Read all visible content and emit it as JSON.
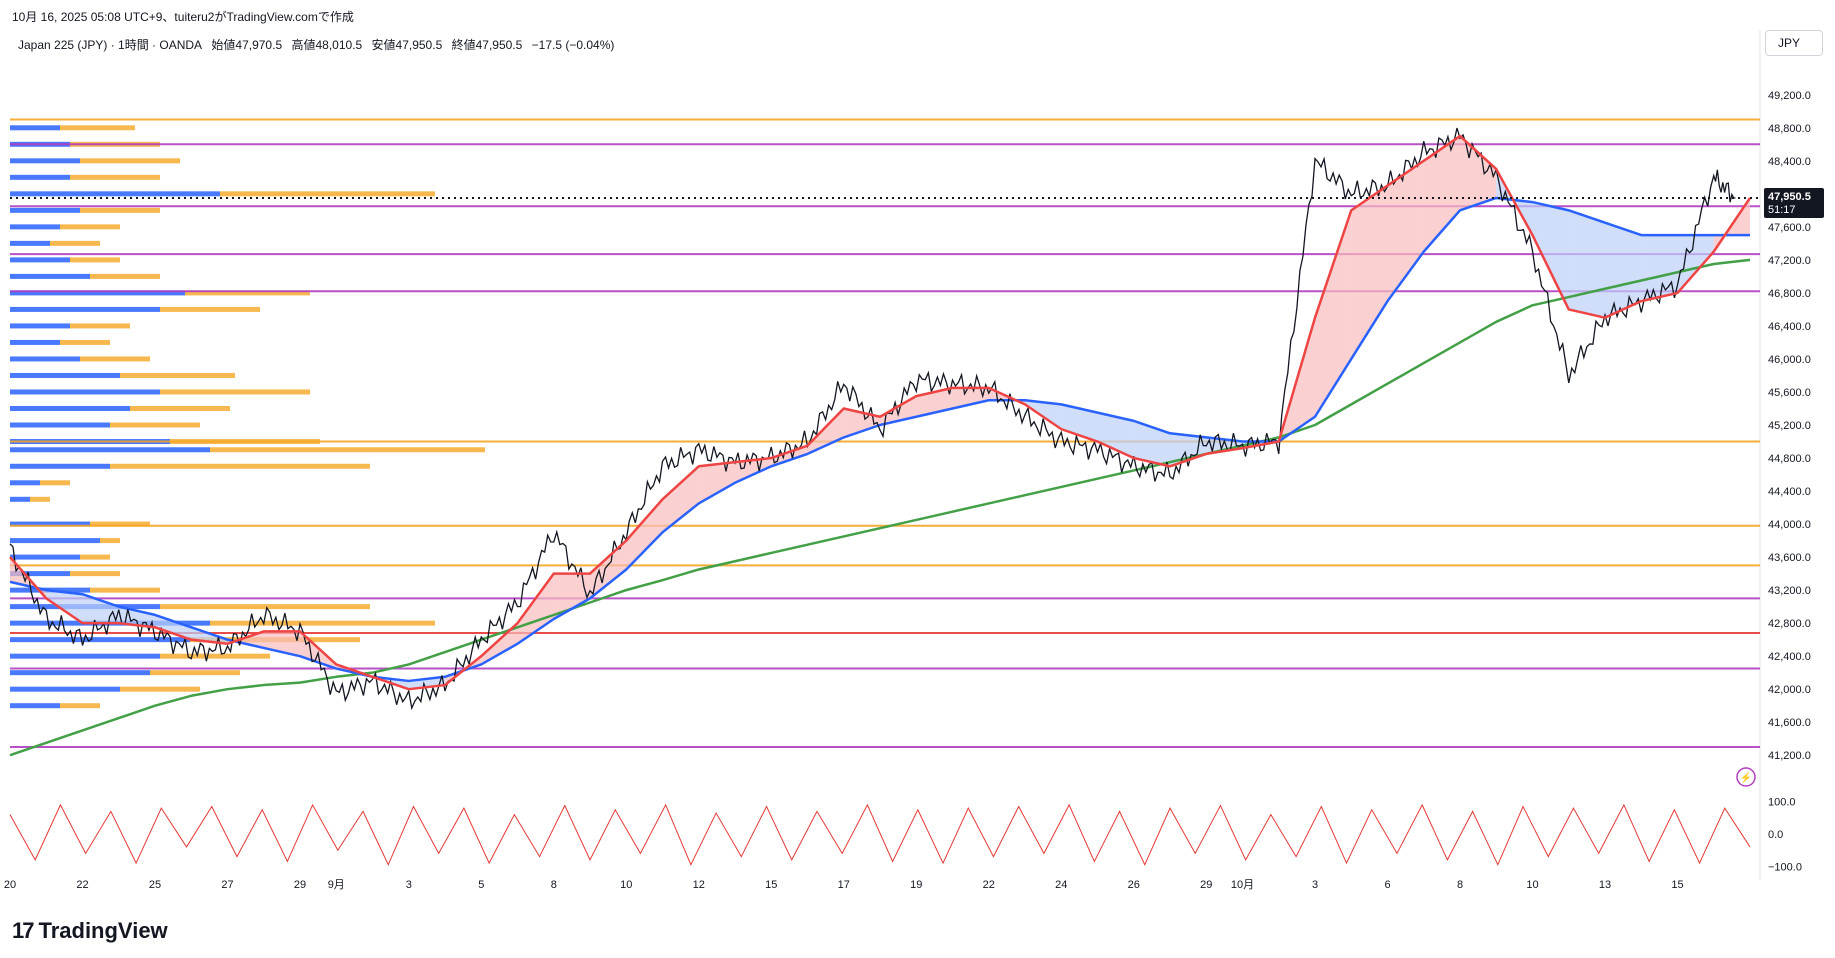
{
  "caption": "10月 16, 2025 05:08 UTC+9、tuiteru2がTradingView.comで作成",
  "legend": {
    "symbol": "Japan 225 (JPY) · 1時間 · OANDA",
    "open": "始値47,970.5",
    "high": "高値48,010.5",
    "low": "安値47,950.5",
    "close": "終値47,950.5",
    "change": "−17.5 (−0.04%)"
  },
  "currency_button": "JPY",
  "price_badge": {
    "price": "47,950.5",
    "countdown": "51:17"
  },
  "brand": {
    "mark": "17",
    "name": "TradingView"
  },
  "colors": {
    "up_line": "#131722",
    "ema_fast": "#ef4444",
    "ema_mid": "#2962ff",
    "ema_slow": "#43a047",
    "fill_bull": "#f8bcbc",
    "fill_bear": "#bcd0f8",
    "vp_up": "#2962ff",
    "vp_down": "#f5a623",
    "lvl_orange": "#f5a623",
    "lvl_purple": "#b13fc0",
    "lvl_red": "#e53935",
    "osc": "#e53935"
  },
  "chart_data": {
    "type": "line",
    "title": "",
    "ylim": [
      40900,
      49500
    ],
    "y_ticks": [
      "49,200.0",
      "48,800.0",
      "48,400.0",
      "48,000.0",
      "47,600.0",
      "47,200.0",
      "46,800.0",
      "46,400.0",
      "46,000.0",
      "45,600.0",
      "45,200.0",
      "44,800.0",
      "44,400.0",
      "44,000.0",
      "43,600.0",
      "43,200.0",
      "42,800.0",
      "42,400.0",
      "42,000.0",
      "41,600.0",
      "41,200.0"
    ],
    "y_tick_values": [
      49200,
      48800,
      48400,
      48000,
      47600,
      47200,
      46800,
      46400,
      46000,
      45600,
      45200,
      44800,
      44400,
      44000,
      43600,
      43200,
      42800,
      42400,
      42000,
      41600,
      41200
    ],
    "x_labels": [
      "20",
      "22",
      "25",
      "27",
      "29",
      "9月",
      "3",
      "5",
      "8",
      "10",
      "12",
      "15",
      "17",
      "19",
      "22",
      "24",
      "26",
      "29",
      "10月",
      "3",
      "6",
      "8",
      "10",
      "13",
      "15"
    ],
    "x_label_idx": [
      0,
      2,
      4,
      6,
      8,
      9,
      11,
      13,
      15,
      17,
      19,
      21,
      23,
      25,
      27,
      29,
      31,
      33,
      34,
      36,
      38,
      40,
      42,
      44,
      46
    ],
    "session_count": 48,
    "price_series": {
      "name": "",
      "x": [
        0,
        1,
        2,
        3,
        4,
        5,
        6,
        7,
        8,
        9,
        10,
        11,
        12,
        13,
        14,
        15,
        16,
        17,
        18,
        19,
        20,
        21,
        22,
        23,
        24,
        25,
        26,
        27,
        28,
        29,
        30,
        31,
        32,
        33,
        34,
        35,
        36,
        37,
        38,
        39,
        40,
        41,
        42,
        43,
        44,
        45,
        46,
        47,
        47.6
      ],
      "y": [
        43700,
        42850,
        42600,
        42900,
        42700,
        42450,
        42500,
        42900,
        42700,
        41950,
        42100,
        41850,
        42050,
        42600,
        43050,
        43900,
        43150,
        43900,
        44700,
        44900,
        44750,
        44800,
        45000,
        45700,
        45150,
        45750,
        45700,
        45650,
        45300,
        45000,
        44900,
        44700,
        44600,
        45000,
        44950,
        45000,
        48400,
        48000,
        48100,
        48500,
        48700,
        48200,
        47300,
        45800,
        46500,
        46700,
        46900,
        48200,
        47950
      ]
    },
    "ema_fast": [
      43600,
      43100,
      42800,
      42800,
      42750,
      42600,
      42550,
      42700,
      42700,
      42300,
      42150,
      42000,
      42050,
      42400,
      42800,
      43400,
      43400,
      43800,
      44300,
      44700,
      44750,
      44800,
      44950,
      45400,
      45300,
      45550,
      45650,
      45650,
      45450,
      45150,
      45000,
      44800,
      44700,
      44850,
      44920,
      45000,
      46500,
      47800,
      48100,
      48400,
      48700,
      48300,
      47500,
      46600,
      46500,
      46700,
      46800,
      47300,
      47950
    ],
    "ema_mid": [
      43300,
      43200,
      43150,
      43000,
      42900,
      42750,
      42600,
      42500,
      42400,
      42250,
      42150,
      42100,
      42150,
      42300,
      42550,
      42850,
      43100,
      43450,
      43900,
      44250,
      44500,
      44700,
      44850,
      45050,
      45200,
      45300,
      45400,
      45500,
      45500,
      45450,
      45350,
      45250,
      45100,
      45050,
      45000,
      45000,
      45300,
      46000,
      46700,
      47300,
      47800,
      47950,
      47900,
      47800,
      47650,
      47500,
      47500,
      47500,
      47500
    ],
    "ema_slow": [
      41200,
      41350,
      41500,
      41650,
      41800,
      41920,
      42000,
      42050,
      42080,
      42150,
      42200,
      42300,
      42450,
      42600,
      42750,
      42900,
      43050,
      43200,
      43320,
      43450,
      43550,
      43650,
      43750,
      43850,
      43950,
      44050,
      44150,
      44250,
      44350,
      44450,
      44550,
      44650,
      44750,
      44850,
      44950,
      45050,
      45200,
      45450,
      45700,
      45950,
      46200,
      46450,
      46650,
      46750,
      46850,
      46950,
      47050,
      47150,
      47200
    ],
    "levels": [
      {
        "price": 48900,
        "kind": "orange"
      },
      {
        "price": 48600,
        "kind": "purple"
      },
      {
        "price": 47850,
        "kind": "purple"
      },
      {
        "price": 47270,
        "kind": "purple"
      },
      {
        "price": 46820,
        "kind": "purple"
      },
      {
        "price": 45000,
        "kind": "orange"
      },
      {
        "price": 43980,
        "kind": "orange"
      },
      {
        "price": 43500,
        "kind": "orange"
      },
      {
        "price": 43100,
        "kind": "purple"
      },
      {
        "price": 42680,
        "kind": "red"
      },
      {
        "price": 42250,
        "kind": "purple"
      },
      {
        "price": 41300,
        "kind": "purple"
      }
    ],
    "volume_profile": [
      {
        "price": 48800,
        "up": 0.1,
        "down": 0.25
      },
      {
        "price": 48600,
        "up": 0.12,
        "down": 0.3
      },
      {
        "price": 48400,
        "up": 0.14,
        "down": 0.34
      },
      {
        "price": 48200,
        "up": 0.12,
        "down": 0.3
      },
      {
        "price": 48000,
        "up": 0.42,
        "down": 0.85
      },
      {
        "price": 47800,
        "up": 0.14,
        "down": 0.3
      },
      {
        "price": 47600,
        "up": 0.1,
        "down": 0.22
      },
      {
        "price": 47400,
        "up": 0.08,
        "down": 0.18
      },
      {
        "price": 47200,
        "up": 0.12,
        "down": 0.22
      },
      {
        "price": 47000,
        "up": 0.16,
        "down": 0.3
      },
      {
        "price": 46800,
        "up": 0.35,
        "down": 0.6
      },
      {
        "price": 46600,
        "up": 0.3,
        "down": 0.5
      },
      {
        "price": 46400,
        "up": 0.12,
        "down": 0.24
      },
      {
        "price": 46200,
        "up": 0.1,
        "down": 0.2
      },
      {
        "price": 46000,
        "up": 0.14,
        "down": 0.28
      },
      {
        "price": 45800,
        "up": 0.22,
        "down": 0.45
      },
      {
        "price": 45600,
        "up": 0.3,
        "down": 0.6
      },
      {
        "price": 45400,
        "up": 0.24,
        "down": 0.44
      },
      {
        "price": 45200,
        "up": 0.2,
        "down": 0.38
      },
      {
        "price": 45000,
        "up": 0.32,
        "down": 0.62
      },
      {
        "price": 44900,
        "up": 0.4,
        "down": 0.95
      },
      {
        "price": 44700,
        "up": 0.2,
        "down": 0.72
      },
      {
        "price": 44500,
        "up": 0.06,
        "down": 0.12
      },
      {
        "price": 44300,
        "up": 0.04,
        "down": 0.08
      },
      {
        "price": 44000,
        "up": 0.16,
        "down": 0.28
      },
      {
        "price": 43800,
        "up": 0.18,
        "down": 0.22
      },
      {
        "price": 43600,
        "up": 0.14,
        "down": 0.2
      },
      {
        "price": 43400,
        "up": 0.12,
        "down": 0.22
      },
      {
        "price": 43200,
        "up": 0.16,
        "down": 0.3
      },
      {
        "price": 43000,
        "up": 0.3,
        "down": 0.72
      },
      {
        "price": 42800,
        "up": 0.4,
        "down": 0.85
      },
      {
        "price": 42600,
        "up": 0.36,
        "down": 0.7
      },
      {
        "price": 42400,
        "up": 0.3,
        "down": 0.52
      },
      {
        "price": 42200,
        "up": 0.28,
        "down": 0.46
      },
      {
        "price": 42000,
        "up": 0.22,
        "down": 0.38
      },
      {
        "price": 41800,
        "up": 0.1,
        "down": 0.18
      }
    ],
    "oscillator": {
      "labels": [
        "100.0",
        "0.0",
        "−100.0"
      ],
      "values": [
        60,
        -80,
        90,
        -60,
        70,
        -90,
        80,
        -40,
        85,
        -70,
        75,
        -85,
        90,
        -50,
        70,
        -95,
        85,
        -60,
        80,
        -90,
        60,
        -70,
        88,
        -80,
        75,
        -60,
        90,
        -95,
        65,
        -70,
        85,
        -80,
        70,
        -60,
        90,
        -85,
        75,
        -90,
        80,
        -70,
        85,
        -60,
        90,
        -85,
        70,
        -95,
        80,
        -60,
        88,
        -80,
        60,
        -70,
        85,
        -90,
        75,
        -60,
        90,
        -80,
        70,
        -95,
        85,
        -70,
        80,
        -60,
        90,
        -85,
        75,
        -90,
        80,
        -40
      ]
    }
  }
}
